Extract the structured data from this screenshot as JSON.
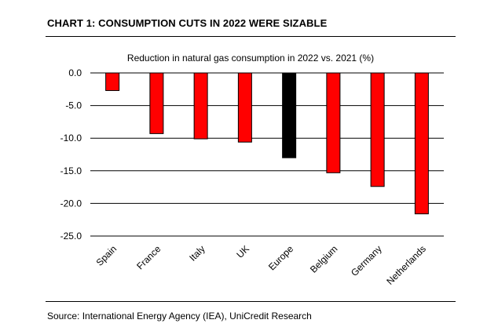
{
  "header": {
    "title": "CHART 1: CONSUMPTION CUTS IN 2022 WERE SIZABLE"
  },
  "footer": {
    "source": "Source: International Energy Agency (IEA), UniCredit Research"
  },
  "colors": {
    "country_bar": "#ff0000",
    "europe_bar": "#000000",
    "grid": "#000000"
  },
  "chart_data": {
    "type": "bar",
    "title": "Reduction in natural gas consumption in 2022 vs. 2021 (%)",
    "xlabel": "",
    "ylabel": "",
    "categories": [
      "Spain",
      "France",
      "Italy",
      "UK",
      "Europe",
      "Belgium",
      "Germany",
      "Netherlands"
    ],
    "values": [
      -2.7,
      -9.3,
      -10.1,
      -10.6,
      -13.0,
      -15.3,
      -17.4,
      -21.6
    ],
    "highlight": [
      "Europe"
    ],
    "ylim": [
      -25.0,
      0.0
    ],
    "yticks": [
      0.0,
      -5.0,
      -10.0,
      -15.0,
      -20.0,
      -25.0
    ],
    "ytick_labels": [
      "0.0",
      "-5.0",
      "-10.0",
      "-15.0",
      "-20.0",
      "-25.0"
    ],
    "grid": true,
    "legend": "none"
  }
}
